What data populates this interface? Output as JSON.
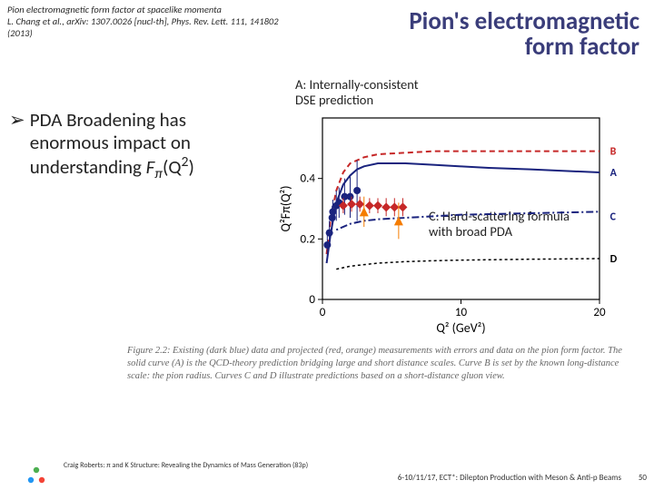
{
  "citation": {
    "line1": "Pion electromagnetic form factor at spacelike momenta",
    "line2": "L. Chang et al., arXiv: 1307.0026 [nucl-th], Phys. Rev. Lett. 111, 141802 (2013)"
  },
  "title": {
    "line1": "Pion's electromagnetic",
    "line2": "form factor"
  },
  "bullet": {
    "symbol": "➢",
    "text_html": "PDA Broadening has enormous impact on understanding <i>F</i><span class='sub'>π</span>(Q<span class='sup'>2</span>)"
  },
  "annotations": {
    "A": "A: Internally-consistent\nDSE prediction",
    "C": "C: Hard-scattering formula\nwith broad PDA"
  },
  "chart": {
    "type": "line+scatter",
    "xlabel": "Q² (GeV²)",
    "ylabel": "Q²Fπ(Q²)",
    "xlim": [
      0,
      20
    ],
    "xticks": [
      0,
      10,
      20
    ],
    "ylim": [
      0,
      0.6
    ],
    "yticks": [
      0,
      0.2,
      0.4
    ],
    "background": "#ffffff",
    "axis_color": "#000000",
    "grid": false,
    "series": {
      "A": {
        "type": "line",
        "color": "#1a237e",
        "width": 2,
        "label": "A",
        "x": [
          0.3,
          0.6,
          1,
          1.5,
          2,
          2.5,
          3,
          4,
          5,
          6,
          8,
          10,
          12,
          15,
          20
        ],
        "y": [
          0.12,
          0.22,
          0.32,
          0.38,
          0.41,
          0.43,
          0.44,
          0.45,
          0.45,
          0.45,
          0.445,
          0.44,
          0.435,
          0.43,
          0.42
        ]
      },
      "B": {
        "type": "line",
        "color": "#c62828",
        "width": 2,
        "dash": "6,4",
        "label": "B",
        "x": [
          0.3,
          0.6,
          1,
          1.5,
          2,
          3,
          4,
          6,
          8,
          10,
          15,
          20
        ],
        "y": [
          0.15,
          0.27,
          0.36,
          0.42,
          0.45,
          0.47,
          0.48,
          0.485,
          0.49,
          0.49,
          0.49,
          0.49
        ]
      },
      "C": {
        "type": "line",
        "color": "#1a237e",
        "width": 2,
        "dash": "2,3,8,3",
        "label": "C",
        "x": [
          1,
          2,
          3,
          4,
          6,
          8,
          10,
          15,
          20
        ],
        "y": [
          0.23,
          0.25,
          0.26,
          0.265,
          0.27,
          0.275,
          0.28,
          0.285,
          0.29
        ]
      },
      "D": {
        "type": "line",
        "color": "#000000",
        "width": 1.5,
        "dash": "3,3",
        "label": "D",
        "x": [
          1,
          2,
          3,
          4,
          6,
          8,
          10,
          15,
          20
        ],
        "y": [
          0.1,
          0.11,
          0.115,
          0.12,
          0.125,
          0.128,
          0.13,
          0.133,
          0.135
        ]
      }
    },
    "data_existing": {
      "marker": "circle",
      "color": "#1a237e",
      "size": 4,
      "x": [
        0.35,
        0.5,
        0.7,
        0.75,
        1.0,
        1.2,
        1.6,
        2.0,
        2.5
      ],
      "y": [
        0.18,
        0.22,
        0.27,
        0.29,
        0.31,
        0.32,
        0.34,
        0.34,
        0.36
      ],
      "ey": [
        0.05,
        0.04,
        0.04,
        0.04,
        0.05,
        0.05,
        0.06,
        0.07,
        0.1
      ]
    },
    "data_proj_red": {
      "marker": "diamond",
      "color": "#c62828",
      "size": 5,
      "x": [
        1.5,
        2.1,
        2.7,
        3.4,
        4.0,
        4.6,
        5.2,
        5.8
      ],
      "y": [
        0.31,
        0.315,
        0.315,
        0.31,
        0.31,
        0.305,
        0.305,
        0.305
      ],
      "ey": [
        0.025,
        0.025,
        0.025,
        0.025,
        0.025,
        0.03,
        0.03,
        0.03
      ]
    },
    "data_proj_orange": {
      "marker": "triangle",
      "color": "#f57c00",
      "size": 5,
      "x": [
        3.0,
        5.5
      ],
      "y": [
        0.29,
        0.26
      ],
      "ey": [
        0.05,
        0.06
      ]
    },
    "series_labels": [
      {
        "text": "A",
        "x": 20.5,
        "y": 0.42,
        "color": "#1a237e"
      },
      {
        "text": "B",
        "x": 20.5,
        "y": 0.49,
        "color": "#c62828"
      },
      {
        "text": "C",
        "x": 20.5,
        "y": 0.275,
        "color": "#1a237e"
      },
      {
        "text": "D",
        "x": 20.5,
        "y": 0.135,
        "color": "#000000"
      }
    ],
    "label_fontsize": 13
  },
  "figcaption": "Figure 2.2: Existing (dark blue) data and projected (red, orange) measurements with errors and data on the pion form factor. The solid curve (A) is the QCD-theory prediction bridging large and short distance scales. Curve B is set by the known long-distance scale: the pion radius. Curves C and D illustrate predictions based on a short-distance gluon view.",
  "footer": {
    "left": "Craig Roberts: π and K Structure: Revealing the Dynamics of Mass Generation (83p)",
    "right": "6-10/11/17, ECT*: Dilepton Production with Meson & Anti-p Beams",
    "slide": "50"
  },
  "logo_colors": [
    "#4caf50",
    "#2196f3",
    "#f44336"
  ]
}
